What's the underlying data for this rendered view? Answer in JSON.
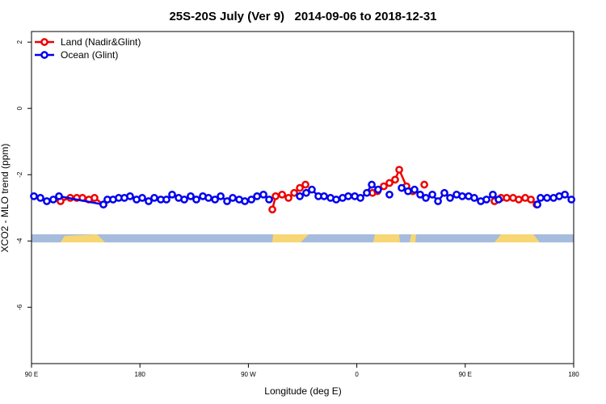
{
  "chart_data": {
    "type": "line",
    "title": "25S-20S July (Ver 9)   2014-09-06 to 2018-12-31",
    "x_label": "Longitude (deg E)",
    "y_label": "XCO2 - MLO trend (ppm)",
    "xlim": [
      90,
      540
    ],
    "ylim": [
      -7.7,
      2.32
    ],
    "xticks": [
      {
        "value": 90,
        "label": "90 E"
      },
      {
        "value": 180,
        "label": "180"
      },
      {
        "value": 270,
        "label": "90 W"
      },
      {
        "value": 360,
        "label": "0"
      },
      {
        "value": 450,
        "label": "90 E"
      },
      {
        "value": 540,
        "label": "180"
      }
    ],
    "yticks": [
      2,
      0,
      -2,
      -4,
      -6
    ],
    "legend": "top-left",
    "series": [
      {
        "name": "Land (Nadir&Glint)",
        "color": "#ee0000",
        "x": [
          114.1,
          122.2,
          127.6,
          132.3,
          137.6,
          142.3,
          149.7,
          null,
          289.9,
          292.6,
          298.0,
          303.3,
          308.0,
          312.7,
          317.4,
          null,
          373.0,
          377.1,
          382.4,
          387.1,
          391.8,
          395.2,
          401.2,
          406.6,
          null,
          416.0,
          null,
          474.3,
          479.7,
          484.4,
          489.7,
          494.4,
          499.8,
          504.5,
          509.2
        ],
        "values": [
          -2.8,
          -2.7,
          -2.7,
          -2.7,
          -2.75,
          -2.7,
          -2.9,
          null,
          -3.05,
          -2.65,
          -2.6,
          -2.7,
          -2.55,
          -2.4,
          -2.3,
          null,
          -2.55,
          -2.5,
          -2.35,
          -2.25,
          -2.15,
          -1.85,
          -2.35,
          -2.5,
          null,
          -2.3,
          null,
          -2.8,
          -2.7,
          -2.7,
          -2.7,
          -2.75,
          -2.7,
          -2.75,
          -2.9
        ]
      },
      {
        "name": "Ocean (Glint)",
        "color": "#0000ee",
        "x": [
          92.0,
          97.4,
          102.7,
          108.1,
          112.8,
          149.7,
          153.0,
          157.7,
          162.4,
          167.1,
          171.8,
          177.2,
          181.9,
          187.2,
          191.9,
          197.3,
          202.0,
          206.7,
          212.1,
          216.8,
          222.1,
          226.8,
          232.2,
          236.9,
          242.3,
          247.0,
          252.3,
          257.0,
          262.4,
          267.1,
          272.5,
          277.2,
          282.5,
          287.2,
          null,
          312.7,
          318.0,
          322.7,
          328.1,
          332.8,
          338.2,
          342.9,
          348.2,
          352.9,
          358.3,
          363.0,
          368.3,
          372.4,
          377.7,
          null,
          387.1,
          null,
          397.2,
          402.5,
          407.9,
          412.6,
          417.3,
          422.7,
          427.4,
          432.7,
          437.4,
          442.8,
          447.5,
          452.8,
          457.5,
          462.9,
          467.6,
          472.9,
          477.7,
          null,
          509.9,
          512.5,
          517.9,
          523.3,
          528.0,
          532.7,
          538.1
        ],
        "values": [
          -2.65,
          -2.7,
          -2.8,
          -2.75,
          -2.65,
          -2.9,
          -2.75,
          -2.75,
          -2.7,
          -2.7,
          -2.65,
          -2.75,
          -2.7,
          -2.8,
          -2.7,
          -2.75,
          -2.75,
          -2.6,
          -2.7,
          -2.75,
          -2.65,
          -2.75,
          -2.65,
          -2.7,
          -2.75,
          -2.65,
          -2.8,
          -2.7,
          -2.75,
          -2.8,
          -2.75,
          -2.65,
          -2.6,
          -2.75,
          null,
          -2.65,
          -2.55,
          -2.45,
          -2.65,
          -2.65,
          -2.7,
          -2.75,
          -2.7,
          -2.65,
          -2.65,
          -2.7,
          -2.55,
          -2.3,
          -2.45,
          null,
          -2.6,
          null,
          -2.4,
          -2.5,
          -2.45,
          -2.6,
          -2.7,
          -2.6,
          -2.8,
          -2.55,
          -2.7,
          -2.6,
          -2.65,
          -2.65,
          -2.7,
          -2.8,
          -2.75,
          -2.6,
          -2.75,
          null,
          -2.9,
          -2.7,
          -2.7,
          -2.7,
          -2.65,
          -2.6,
          -2.75
        ]
      }
    ]
  }
}
